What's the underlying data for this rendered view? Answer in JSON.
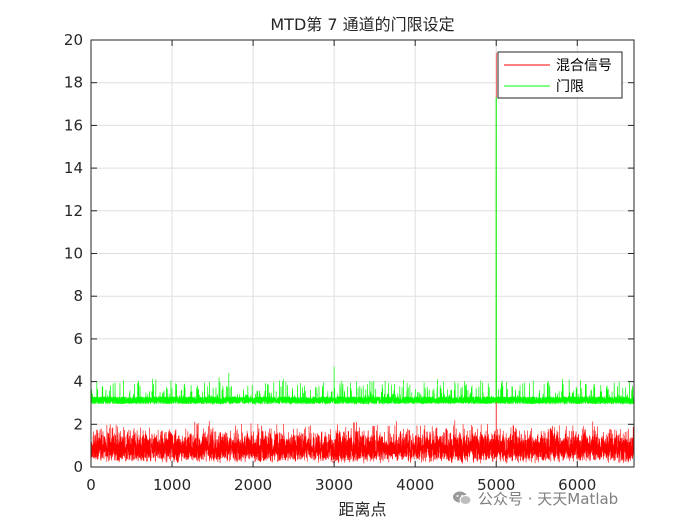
{
  "chart_data": {
    "type": "line",
    "title": "MTD第 7 通道的门限设定",
    "xlabel": "距离点",
    "ylabel": "",
    "xlim": [
      0,
      6700
    ],
    "ylim": [
      0,
      20
    ],
    "xticks": [
      0,
      1000,
      2000,
      3000,
      4000,
      5000,
      6000
    ],
    "xtick_labels": [
      "0",
      "1000",
      "2000",
      "3000",
      "4000",
      "5000",
      "6000"
    ],
    "yticks": [
      0,
      2,
      4,
      6,
      8,
      10,
      12,
      14,
      16,
      18,
      20
    ],
    "ytick_labels": [
      "0",
      "2",
      "4",
      "6",
      "8",
      "10",
      "12",
      "14",
      "16",
      "18",
      "20"
    ],
    "grid": true,
    "legend_position": "top-right",
    "series": [
      {
        "name": "混合信号",
        "color": "#ff0000",
        "description": "noise-like signal fluctuating roughly 0–2.8 across all range cells, with a target spike reaching about 19.4 at x≈5000",
        "x_samples": [
          0,
          500,
          1000,
          1500,
          2000,
          2500,
          3000,
          3500,
          4000,
          4500,
          5000,
          5500,
          6000,
          6500,
          6700
        ],
        "y_samples": [
          1.0,
          1.3,
          0.8,
          1.5,
          1.1,
          0.9,
          1.2,
          1.0,
          1.4,
          0.9,
          19.4,
          1.1,
          1.3,
          0.9,
          1.2
        ],
        "noise_range": [
          0,
          2.8
        ],
        "peak": {
          "x": 5000,
          "y": 19.4
        }
      },
      {
        "name": "门限",
        "color": "#00ff00",
        "description": "CFAR threshold hovering around 3.0–4.7 across all range cells, following the target spike up to about 17.3 at x≈5000",
        "x_samples": [
          0,
          500,
          1000,
          1500,
          1700,
          2000,
          2500,
          3000,
          3500,
          4000,
          4500,
          5000,
          5500,
          6000,
          6500,
          6700
        ],
        "y_samples": [
          3.4,
          3.2,
          3.3,
          3.5,
          4.4,
          3.2,
          3.3,
          4.7,
          3.2,
          3.3,
          3.2,
          17.3,
          3.1,
          3.3,
          3.0,
          3.4
        ],
        "baseline_range": [
          2.9,
          4.7
        ],
        "peak": {
          "x": 5000,
          "y": 17.3
        }
      }
    ]
  },
  "watermark": {
    "text": "公众号 · 天天Matlab",
    "icon": "wechat-icon"
  }
}
